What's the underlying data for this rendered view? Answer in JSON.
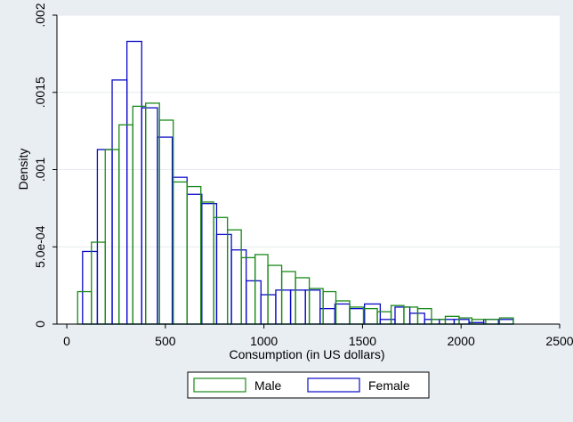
{
  "chart_data": {
    "type": "bar",
    "subtype": "overlaid-histogram",
    "title": "",
    "xlabel": "Consumption (in US dollars)",
    "ylabel": "Density",
    "xlim": [
      -50,
      2500
    ],
    "ylim": [
      0,
      0.002
    ],
    "x_ticks": [
      0,
      500,
      1000,
      1500,
      2000,
      2500
    ],
    "x_tick_labels": [
      "0",
      "500",
      "1000",
      "1500",
      "2000",
      "2500"
    ],
    "y_ticks": [
      0,
      0.0005,
      0.001,
      0.0015,
      0.002
    ],
    "y_tick_labels": [
      "0",
      "5.0e-04",
      ".001",
      ".0015",
      ".002"
    ],
    "grid": true,
    "legend_position": "bottom",
    "series": [
      {
        "name": "Male",
        "color": "#1a8a1a",
        "bins": [
          [
            55,
            125,
            0.00021
          ],
          [
            125,
            195,
            0.00053
          ],
          [
            195,
            265,
            0.00113
          ],
          [
            265,
            335,
            0.00129
          ],
          [
            335,
            400,
            0.00141
          ],
          [
            400,
            470,
            0.00143
          ],
          [
            470,
            540,
            0.00132
          ],
          [
            540,
            610,
            0.00092
          ],
          [
            610,
            680,
            0.00089
          ],
          [
            680,
            745,
            0.00079
          ],
          [
            745,
            815,
            0.00069
          ],
          [
            815,
            885,
            0.00061
          ],
          [
            885,
            955,
            0.00043
          ],
          [
            955,
            1020,
            0.00045
          ],
          [
            1020,
            1090,
            0.00038
          ],
          [
            1090,
            1160,
            0.00034
          ],
          [
            1160,
            1230,
            0.0003
          ],
          [
            1230,
            1300,
            0.00023
          ],
          [
            1300,
            1365,
            0.00021
          ],
          [
            1365,
            1435,
            0.00015
          ],
          [
            1435,
            1505,
            0.00011
          ],
          [
            1505,
            1575,
            0.0001
          ],
          [
            1575,
            1645,
            8e-05
          ],
          [
            1645,
            1710,
            0.00012
          ],
          [
            1710,
            1780,
            0.00011
          ],
          [
            1780,
            1850,
            0.0001
          ],
          [
            1850,
            1920,
            3e-05
          ],
          [
            1920,
            1990,
            5e-05
          ],
          [
            1990,
            2055,
            4e-05
          ],
          [
            2055,
            2125,
            3e-05
          ],
          [
            2125,
            2195,
            3e-05
          ],
          [
            2195,
            2265,
            4e-05
          ]
        ]
      },
      {
        "name": "Female",
        "color": "#0a0ac8",
        "bins": [
          [
            80,
            155,
            0.00047
          ],
          [
            155,
            230,
            0.00113
          ],
          [
            230,
            305,
            0.00158
          ],
          [
            305,
            380,
            0.00183
          ],
          [
            380,
            460,
            0.0014
          ],
          [
            460,
            535,
            0.00121
          ],
          [
            535,
            610,
            0.00095
          ],
          [
            610,
            685,
            0.00084
          ],
          [
            685,
            760,
            0.00078
          ],
          [
            760,
            835,
            0.00058
          ],
          [
            835,
            910,
            0.00048
          ],
          [
            910,
            985,
            0.00028
          ],
          [
            985,
            1060,
            0.00019
          ],
          [
            1060,
            1135,
            0.00022
          ],
          [
            1135,
            1210,
            0.00022
          ],
          [
            1210,
            1285,
            0.00022
          ],
          [
            1285,
            1360,
            0.0001
          ],
          [
            1360,
            1435,
            0.00013
          ],
          [
            1435,
            1510,
            0.0001
          ],
          [
            1510,
            1590,
            0.00013
          ],
          [
            1590,
            1665,
            3e-05
          ],
          [
            1665,
            1740,
            0.00011
          ],
          [
            1740,
            1815,
            7e-05
          ],
          [
            1815,
            1890,
            3e-05
          ],
          [
            1890,
            1965,
            3e-05
          ],
          [
            1965,
            2040,
            3e-05
          ],
          [
            2040,
            2115,
            1e-05
          ],
          [
            2115,
            2190,
            3e-05
          ],
          [
            2190,
            2265,
            3e-05
          ]
        ]
      }
    ]
  }
}
